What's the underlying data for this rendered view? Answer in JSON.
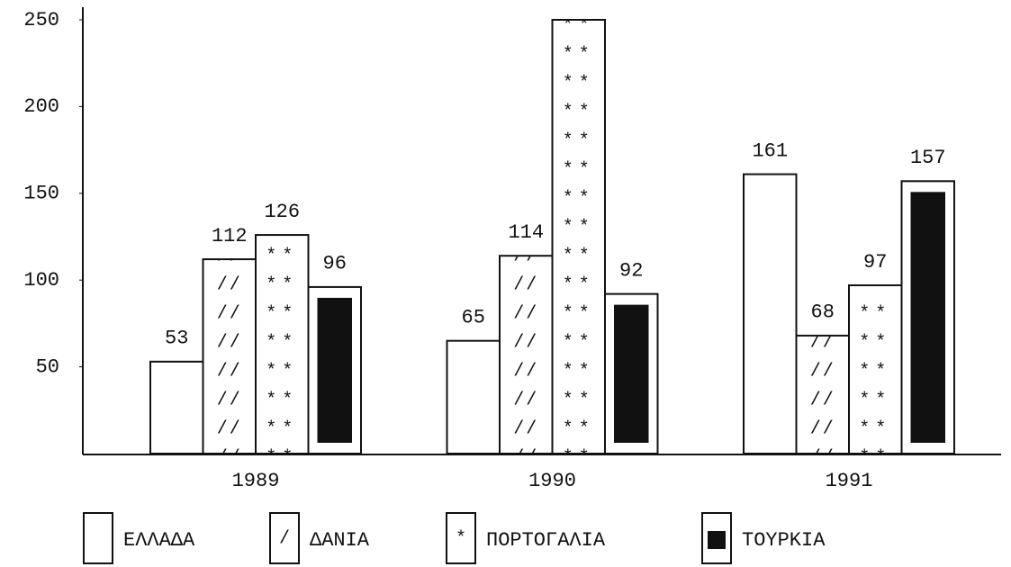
{
  "chart_data": {
    "type": "bar",
    "categories": [
      "1989",
      "1990",
      "1991"
    ],
    "series": [
      {
        "name": "ΕΛΛΑΔΑ",
        "pattern": "none",
        "color": "#ffffff",
        "values": [
          53,
          65,
          161
        ]
      },
      {
        "name": "ΔΑΝΙΑ",
        "pattern": "slash",
        "color": "#ffffff",
        "values": [
          112,
          114,
          68
        ]
      },
      {
        "name": "ΠΟΡΤΟΓΑΛΙΑ",
        "pattern": "star",
        "color": "#ffffff",
        "values": [
          126,
          250,
          97
        ],
        "value_labels": [
          "126",
          null,
          "97"
        ]
      },
      {
        "name": "ΤΟΥΡΚΙΑ",
        "pattern": "solid",
        "color": "#111111",
        "values": [
          96,
          92,
          157
        ]
      }
    ],
    "ylim": [
      0,
      250
    ],
    "yticks": [
      50,
      100,
      150,
      200,
      250
    ]
  }
}
